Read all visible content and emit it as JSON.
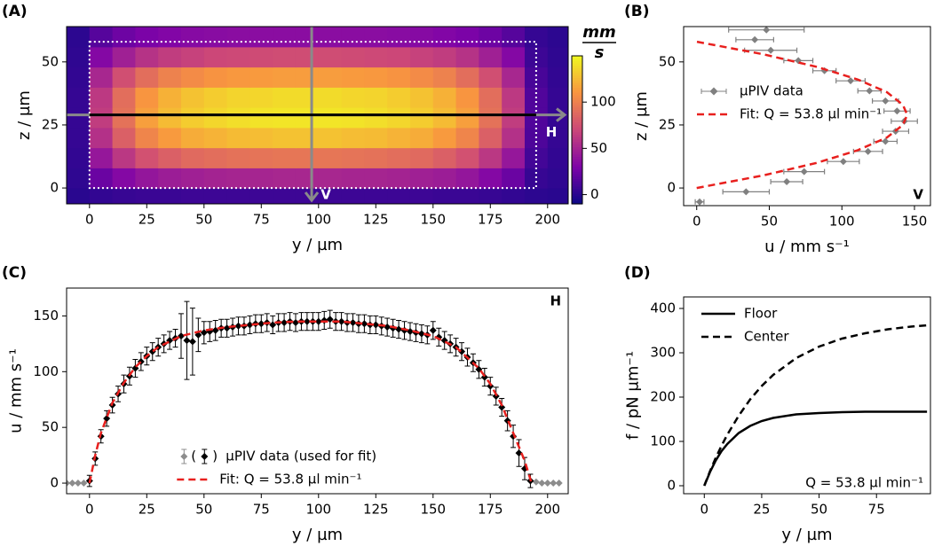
{
  "chart_data": [
    {
      "type": "heatmap",
      "panel": "(A)",
      "xlabel": "y / µm",
      "ylabel": "z / µm",
      "xlim": [
        -10,
        209
      ],
      "ylim": [
        -6.3,
        64
      ],
      "xticks": [
        0,
        25,
        50,
        75,
        100,
        125,
        150,
        175,
        200
      ],
      "yticks": [
        0,
        25,
        50
      ],
      "x_edges": [
        -10,
        0,
        10,
        20,
        30,
        40,
        50,
        60,
        70,
        80,
        90,
        100,
        110,
        120,
        130,
        140,
        150,
        160,
        170,
        180,
        190,
        200,
        210
      ],
      "y_edges": [
        -6.3,
        0,
        8,
        16,
        24,
        32,
        40,
        48,
        56,
        64
      ],
      "values": [
        [
          0,
          3,
          5,
          6,
          6,
          7,
          7,
          7,
          7,
          7,
          7,
          7,
          7,
          7,
          7,
          7,
          6,
          6,
          5,
          3,
          1,
          0
        ],
        [
          2,
          23,
          33,
          41,
          45,
          47,
          49,
          50,
          50,
          51,
          51,
          51,
          50,
          50,
          49,
          47,
          45,
          41,
          33,
          23,
          5,
          2
        ],
        [
          3,
          42,
          61,
          75,
          83,
          88,
          90,
          92,
          93,
          94,
          94,
          94,
          93,
          92,
          90,
          88,
          83,
          75,
          61,
          42,
          9,
          3
        ],
        [
          4,
          57,
          83,
          102,
          112,
          119,
          122,
          125,
          126,
          128,
          128,
          128,
          126,
          125,
          122,
          119,
          112,
          102,
          83,
          57,
          13,
          4
        ],
        [
          4,
          64,
          92,
          114,
          125,
          132,
          136,
          139,
          141,
          142,
          142,
          142,
          141,
          139,
          136,
          132,
          125,
          114,
          92,
          64,
          14,
          4
        ],
        [
          4,
          62,
          90,
          110,
          121,
          128,
          132,
          135,
          136,
          138,
          138,
          138,
          136,
          135,
          132,
          128,
          121,
          110,
          90,
          62,
          14,
          4
        ],
        [
          3,
          51,
          74,
          90,
          100,
          105,
          109,
          111,
          112,
          113,
          113,
          113,
          112,
          111,
          109,
          105,
          100,
          90,
          74,
          51,
          11,
          3
        ],
        [
          2,
          33,
          47,
          58,
          64,
          67,
          70,
          71,
          72,
          73,
          73,
          73,
          72,
          71,
          70,
          67,
          64,
          58,
          47,
          33,
          7,
          2
        ],
        [
          1,
          16,
          24,
          29,
          32,
          34,
          35,
          36,
          36,
          36,
          36,
          36,
          36,
          36,
          35,
          34,
          32,
          29,
          24,
          16,
          4,
          1
        ]
      ],
      "colormap": "plasma",
      "clim": [
        -10,
        150
      ],
      "colorbar_ticks": [
        0,
        50,
        100
      ],
      "colorbar_label": {
        "numerator": "mm",
        "denominator": "s"
      },
      "boundary": {
        "y": [
          0,
          195
        ],
        "z": [
          0,
          58
        ]
      },
      "cuts": {
        "horizontal": 29,
        "vertical": 97,
        "horizontal_label": "H",
        "vertical_label": "V"
      }
    },
    {
      "type": "scatter",
      "panel": "(B)",
      "xlabel": "u / mm s⁻¹",
      "ylabel": "z / µm",
      "xlim": [
        -9,
        161
      ],
      "ylim": [
        -7,
        64
      ],
      "xticks": [
        0,
        50,
        100,
        150
      ],
      "yticks": [
        0,
        25,
        50
      ],
      "legend": "center left",
      "note": "V",
      "series": [
        {
          "name": "µPIV data",
          "color": "#808080",
          "x": [
            48,
            40,
            51,
            70,
            88,
            106,
            119,
            130,
            138,
            143,
            137,
            130,
            118,
            101,
            74,
            62,
            34,
            2
          ],
          "y": [
            62.7,
            58.8,
            54.6,
            50.5,
            46.5,
            42.5,
            38.5,
            34.5,
            30.5,
            26.5,
            22.5,
            18.5,
            14.5,
            10.5,
            6.5,
            2.5,
            -1.5,
            -5.5
          ],
          "xerr": [
            26,
            13,
            18,
            10,
            8,
            10,
            8,
            9,
            9,
            9,
            9,
            8,
            10,
            11,
            14,
            11,
            16,
            3
          ]
        },
        {
          "name": "Fit: Q = 53.8 µl min⁻¹",
          "color": "#e8201e",
          "style": "dashed",
          "x": [
            0,
            46,
            83,
            111,
            131,
            142,
            145,
            142,
            131,
            111,
            83,
            46,
            0
          ],
          "y": [
            0,
            5,
            10,
            15,
            20,
            25,
            29,
            33,
            38,
            43,
            48,
            53,
            58
          ]
        }
      ]
    },
    {
      "type": "scatter",
      "panel": "(C)",
      "xlabel": "y / µm",
      "ylabel": "u / mm s⁻¹",
      "xlim": [
        -10,
        209
      ],
      "ylim": [
        -9.5,
        175
      ],
      "xticks": [
        0,
        25,
        50,
        75,
        100,
        125,
        150,
        175,
        200
      ],
      "yticks": [
        0,
        50,
        100,
        150
      ],
      "legend": "lower center",
      "note": "H",
      "data_legend": {
        "label": "µPIV data (used for fit)",
        "brackets": [
          "(",
          ")"
        ]
      },
      "series": [
        {
          "color": "#8c8c8c",
          "x": [
            -10,
            -7.5,
            -5,
            -2.5,
            195,
            197.5,
            200,
            202.5,
            205
          ],
          "y": [
            0,
            0,
            0,
            0,
            1,
            0,
            0,
            0,
            0
          ]
        },
        {
          "color": "#000000",
          "x": [
            0,
            2.5,
            5,
            7.5,
            10,
            12.5,
            15,
            17.5,
            20,
            22.5,
            25,
            27.5,
            30,
            32.5,
            35,
            37.5,
            40,
            42.5,
            45,
            47.5,
            50,
            52.5,
            55,
            57.5,
            60,
            62.5,
            65,
            67.5,
            70,
            72.5,
            75,
            77.5,
            80,
            82.5,
            85,
            87.5,
            90,
            92.5,
            95,
            97.5,
            100,
            102.5,
            105,
            107.5,
            110,
            112.5,
            115,
            117.5,
            120,
            122.5,
            125,
            127.5,
            130,
            132.5,
            135,
            137.5,
            140,
            142.5,
            145,
            147.5,
            150,
            152.5,
            155,
            157.5,
            160,
            162.5,
            165,
            167.5,
            170,
            172.5,
            175,
            177.5,
            180,
            182.5,
            185,
            187.5,
            190,
            192.5
          ],
          "y": [
            2,
            22,
            42,
            58,
            70,
            80,
            89,
            96,
            103,
            109,
            114,
            118,
            122,
            125,
            128,
            130,
            132,
            128,
            127,
            133,
            135,
            136,
            137,
            139,
            139,
            140,
            141,
            141,
            142,
            143,
            143,
            144,
            142,
            144,
            144,
            145,
            144,
            145,
            145,
            145,
            145,
            146,
            147,
            145,
            145,
            144,
            144,
            143,
            143,
            142,
            142,
            141,
            140,
            139,
            138,
            137,
            136,
            135,
            134,
            133,
            137,
            131,
            128,
            125,
            122,
            118,
            113,
            108,
            102,
            95,
            87,
            78,
            68,
            56,
            42,
            27,
            13,
            2
          ],
          "yerr": [
            5,
            6,
            6,
            7,
            7,
            7,
            8,
            8,
            8,
            8,
            8,
            8,
            8,
            8,
            8,
            8,
            20,
            35,
            30,
            15,
            10,
            9,
            9,
            8,
            8,
            8,
            8,
            8,
            8,
            8,
            8,
            8,
            8,
            8,
            8,
            8,
            8,
            8,
            8,
            8,
            8,
            8,
            8,
            8,
            8,
            8,
            8,
            8,
            8,
            8,
            8,
            8,
            8,
            8,
            8,
            8,
            8,
            8,
            8,
            8,
            8,
            8,
            8,
            8,
            8,
            8,
            8,
            8,
            8,
            8,
            8,
            8,
            8,
            9,
            10,
            12,
            10,
            6
          ]
        },
        {
          "name": "Fit: Q = 53.8 µl min⁻¹",
          "color": "#e8201e",
          "style": "dashed",
          "x": [
            0,
            2.5,
            5,
            10,
            15,
            20,
            25,
            30,
            40,
            50,
            60,
            70,
            80,
            90,
            100,
            110,
            120,
            130,
            140,
            150,
            160,
            170,
            175,
            180,
            185,
            190,
            193
          ],
          "y": [
            0,
            25,
            45,
            72,
            90,
            104,
            114,
            122,
            132,
            137,
            140,
            142,
            144,
            145,
            145,
            145,
            143,
            141,
            137,
            132,
            122,
            103,
            89,
            70,
            45,
            20,
            0
          ]
        }
      ]
    },
    {
      "type": "line",
      "panel": "(D)",
      "xlabel": "y / µm",
      "ylabel": "f / pN µm⁻¹",
      "xlim": [
        -9,
        98.5
      ],
      "ylim": [
        -18,
        426
      ],
      "xticks": [
        0,
        25,
        50,
        75
      ],
      "yticks": [
        0,
        100,
        200,
        300,
        400
      ],
      "legend": "upper left",
      "note": "Q = 53.8 µl min⁻¹",
      "series": [
        {
          "name": "Floor",
          "color": "#000000",
          "style": "solid",
          "x": [
            0,
            2.5,
            5,
            7.5,
            10,
            15,
            20,
            25,
            30,
            40,
            50,
            60,
            70,
            80,
            90,
            97
          ],
          "y": [
            0,
            31,
            57,
            78,
            94,
            119,
            135,
            146,
            153,
            161,
            164,
            166,
            167,
            167,
            167,
            167
          ]
        },
        {
          "name": "Center",
          "color": "#000000",
          "style": "dashed",
          "x": [
            0,
            2.5,
            5,
            7.5,
            10,
            15,
            20,
            25,
            30,
            40,
            50,
            60,
            70,
            80,
            90,
            97
          ],
          "y": [
            0,
            33,
            63,
            90,
            115,
            158,
            195,
            225,
            250,
            288,
            314,
            332,
            344,
            353,
            359,
            362
          ]
        }
      ]
    }
  ]
}
